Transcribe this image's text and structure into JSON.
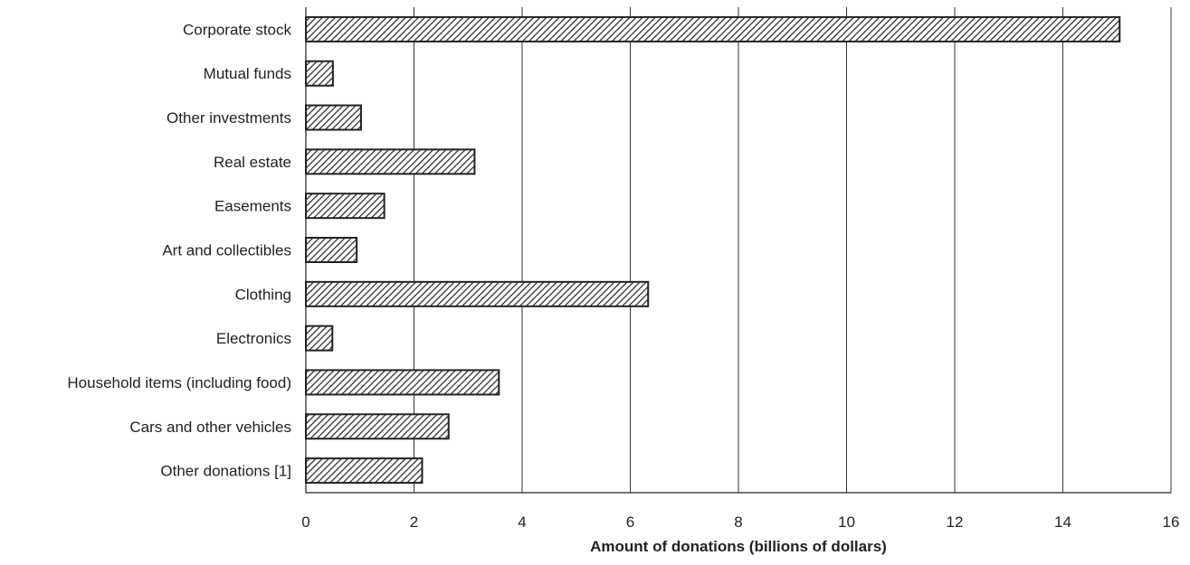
{
  "chart_data": {
    "type": "bar",
    "orientation": "horizontal",
    "title": "",
    "xlabel": "Amount of donations (billions of dollars)",
    "ylabel": "",
    "xlim": [
      0,
      16
    ],
    "xticks": [
      0,
      2,
      4,
      6,
      8,
      10,
      12,
      14,
      16
    ],
    "grid": "vertical",
    "bar_fill": "diagonal-hatch",
    "colors": {
      "bar_stroke": "#222222",
      "hatch": "#222222",
      "grid": "#333333",
      "bar_background": "#ffffff"
    },
    "categories": [
      "Corporate stock",
      "Mutual funds",
      "Other investments",
      "Real estate",
      "Easements",
      "Art and collectibles",
      "Clothing",
      "Electronics",
      "Household items (including food)",
      "Cars and other vehicles",
      "Other donations [1]"
    ],
    "values": [
      15.05,
      0.5,
      1.02,
      3.12,
      1.45,
      0.94,
      6.33,
      0.49,
      3.57,
      2.64,
      2.15
    ]
  }
}
